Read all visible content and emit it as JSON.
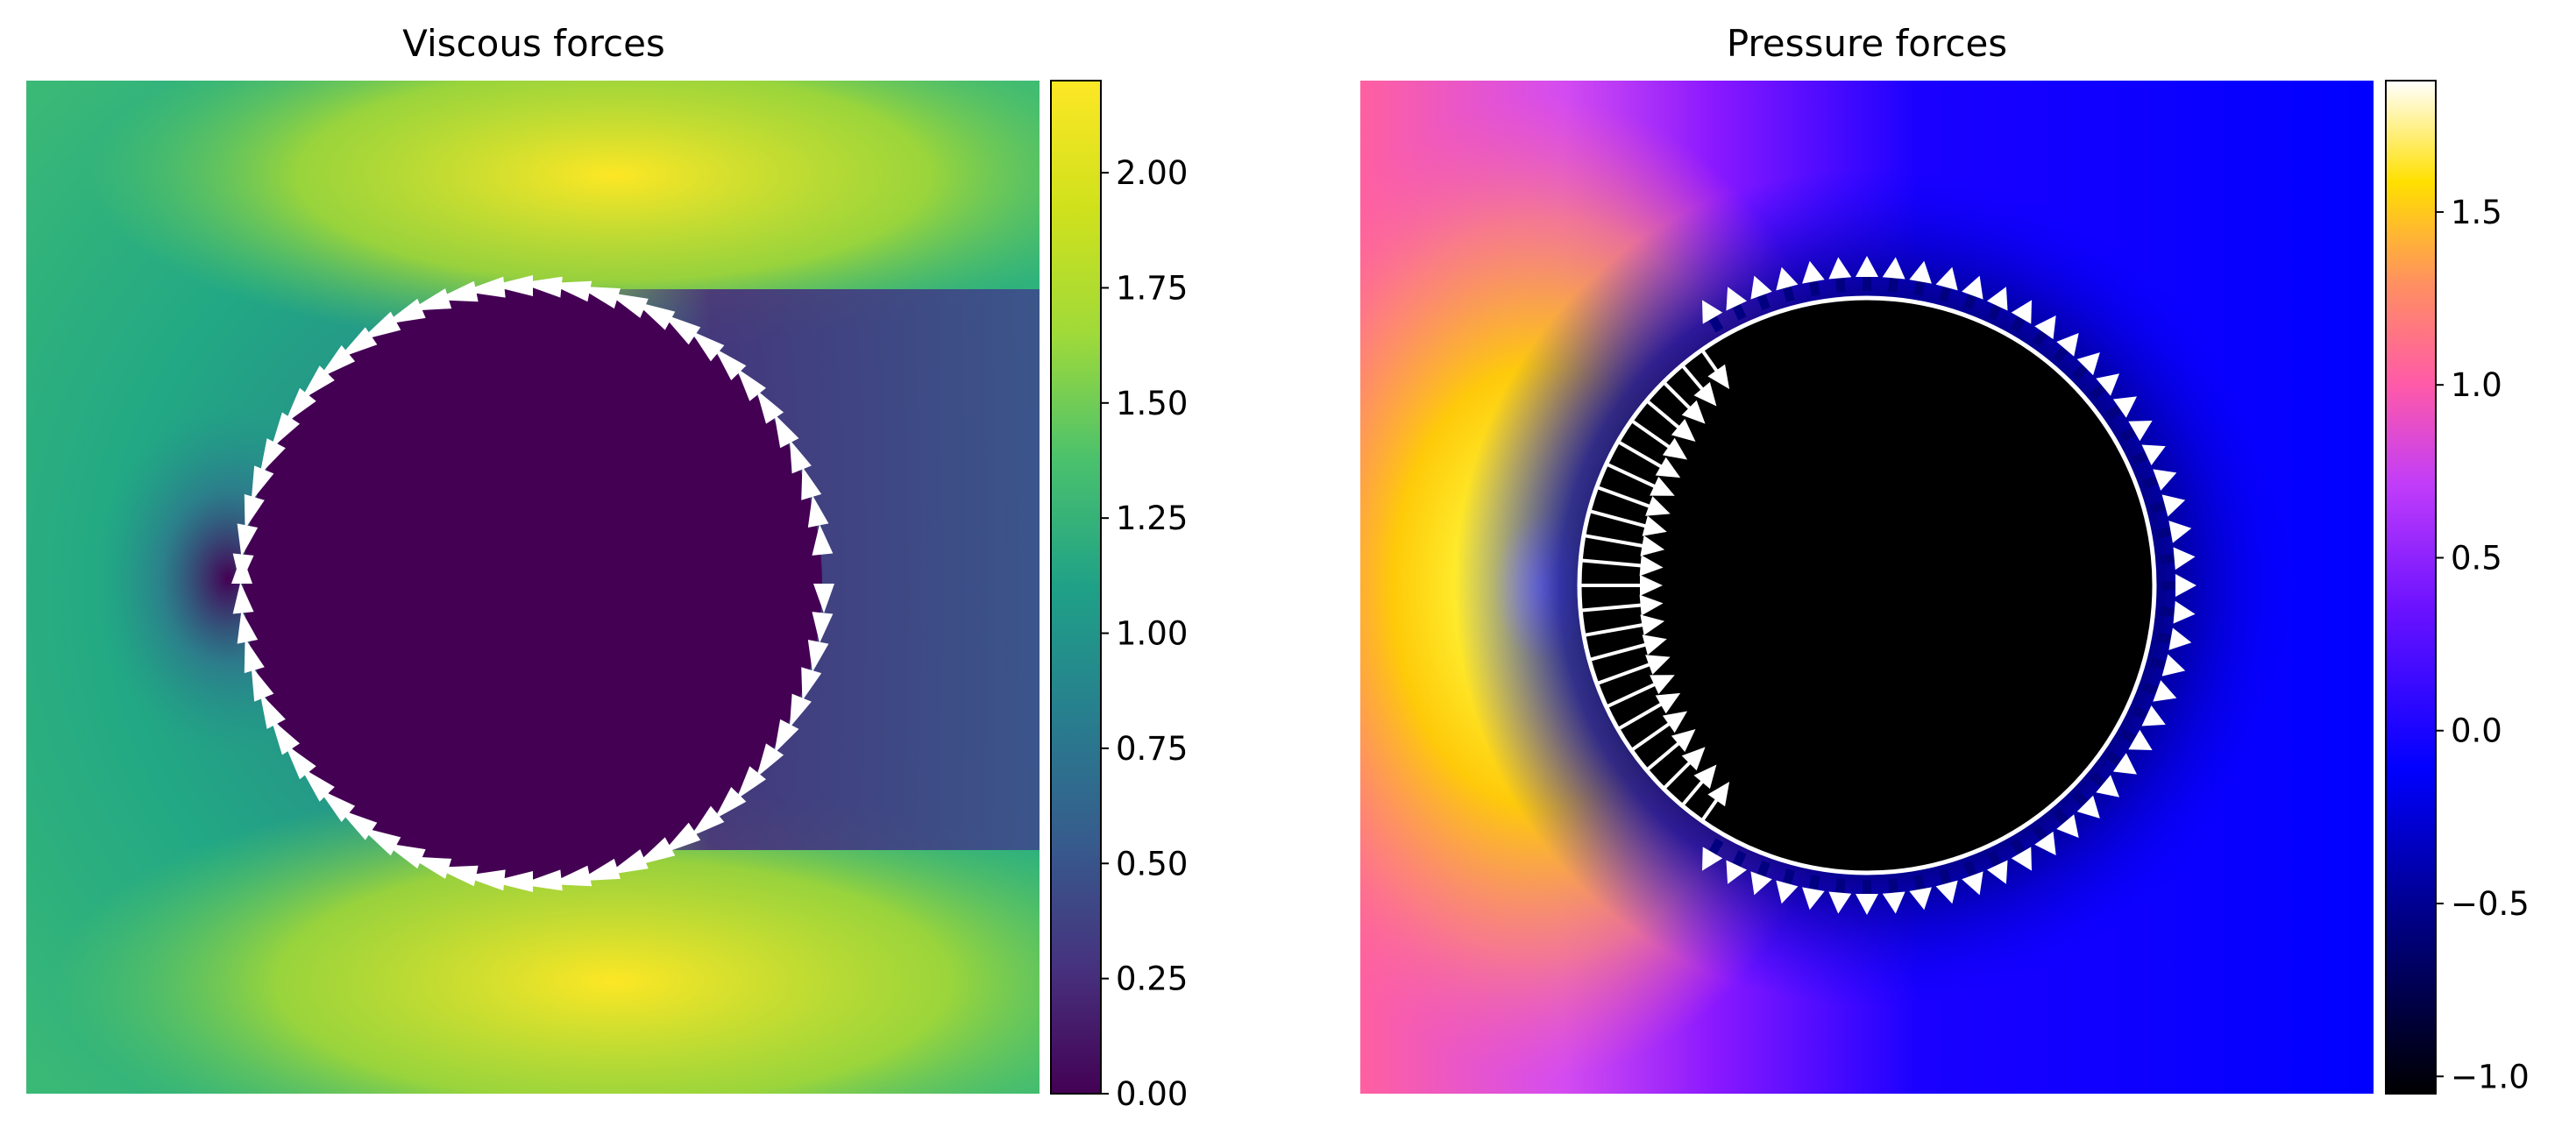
{
  "chart_data": [
    {
      "type": "heatmap",
      "title": "Viscous forces",
      "colormap": "viridis",
      "colorbar": {
        "min": 0.0,
        "max": 2.2,
        "ticks": [
          "0.00",
          "0.25",
          "0.50",
          "0.75",
          "1.00",
          "1.25",
          "1.50",
          "1.75",
          "2.00"
        ],
        "tick_values": [
          0,
          0.25,
          0.5,
          0.75,
          1.0,
          1.25,
          1.5,
          1.75,
          2.0
        ]
      },
      "obstacle": "circle",
      "arrows": "tangential viscous stress vectors along the circle boundary, flowing clockwise from the left stagnation point over top and bottom toward the rear",
      "arrow_color": "#ffffff"
    },
    {
      "type": "heatmap",
      "title": "Pressure forces",
      "colormap": "gnuplot2",
      "colorbar": {
        "min": -1.05,
        "max": 1.88,
        "ticks": [
          "−1.0",
          "−0.5",
          "0.0",
          "0.5",
          "1.0",
          "1.5"
        ],
        "tick_values": [
          -1.0,
          -0.5,
          0.0,
          0.5,
          1.0,
          1.5
        ]
      },
      "obstacle": "circle",
      "arrows": "normal pressure force vectors around the circle boundary, large inward on the upstream face and small outward elsewhere",
      "arrow_color": "#ffffff"
    }
  ]
}
